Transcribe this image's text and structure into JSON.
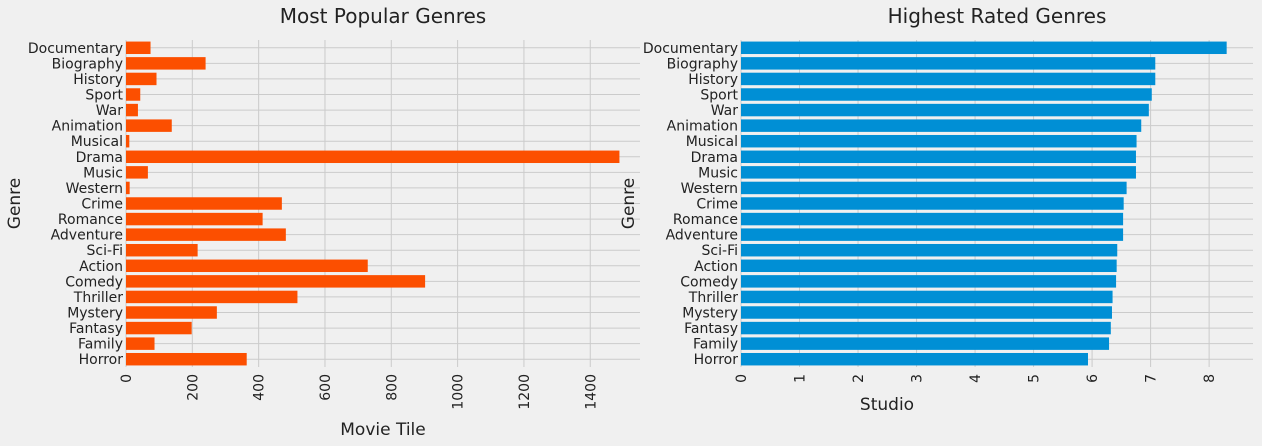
{
  "chart_data": [
    {
      "type": "bar",
      "orientation": "horizontal",
      "title": "Most Popular Genres",
      "xlabel": "Movie Tile",
      "ylabel": "Genre",
      "xlim": [
        0,
        1550
      ],
      "xticks": [
        0,
        200,
        400,
        600,
        800,
        1000,
        1200,
        1400
      ],
      "grid": true,
      "color": "#fc4f00",
      "categories": [
        "Documentary",
        "Biography",
        "History",
        "Sport",
        "War",
        "Animation",
        "Musical",
        "Drama",
        "Music",
        "Western",
        "Crime",
        "Romance",
        "Adventure",
        "Sci-Fi",
        "Action",
        "Comedy",
        "Thriller",
        "Mystery",
        "Fantasy",
        "Family",
        "Horror"
      ],
      "values": [
        74,
        240,
        92,
        43,
        36,
        138,
        10,
        1488,
        66,
        11,
        470,
        412,
        482,
        216,
        729,
        902,
        517,
        274,
        198,
        86,
        364
      ]
    },
    {
      "type": "bar",
      "orientation": "horizontal",
      "title": "Highest Rated Genres",
      "xlabel": "Studio",
      "ylabel": "Genre",
      "xlim": [
        0,
        8.75
      ],
      "xticks": [
        0,
        1,
        2,
        3,
        4,
        5,
        6,
        7,
        8
      ],
      "grid": true,
      "color": "#008fd5",
      "categories": [
        "Documentary",
        "Biography",
        "History",
        "Sport",
        "War",
        "Animation",
        "Musical",
        "Drama",
        "Music",
        "Western",
        "Crime",
        "Romance",
        "Adventure",
        "Sci-Fi",
        "Action",
        "Comedy",
        "Thriller",
        "Mystery",
        "Fantasy",
        "Family",
        "Horror"
      ],
      "values": [
        8.3,
        7.08,
        7.08,
        7.02,
        6.97,
        6.84,
        6.76,
        6.75,
        6.75,
        6.59,
        6.54,
        6.53,
        6.53,
        6.43,
        6.42,
        6.41,
        6.35,
        6.34,
        6.32,
        6.29,
        5.93
      ]
    }
  ]
}
